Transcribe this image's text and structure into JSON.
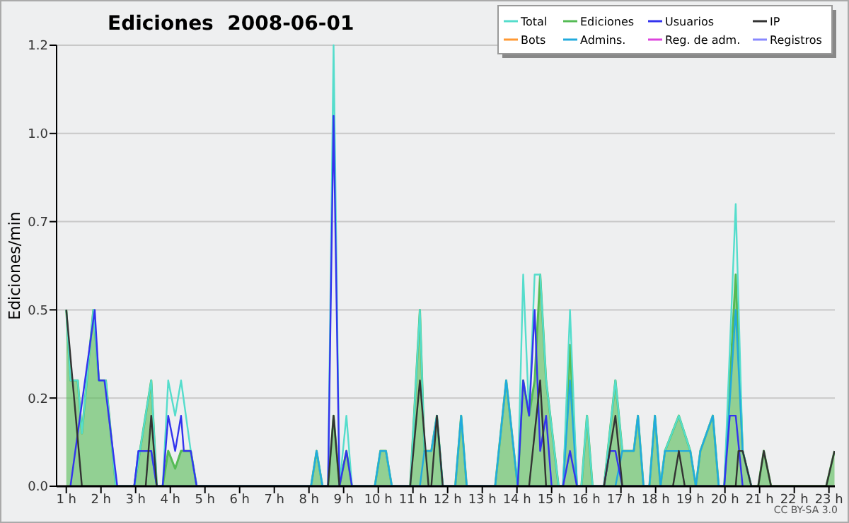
{
  "chart_data": {
    "type": "line",
    "title": "Ediciones  2008-06-01",
    "ylabel": "Ediciones/min",
    "annotations": [
      "CC BY-SA 3.0"
    ],
    "xlim": [
      0.72,
      23.17
    ],
    "ylim": [
      0,
      1.25
    ],
    "xticks": [
      {
        "value": 1,
        "label": "1 h"
      },
      {
        "value": 2,
        "label": "2 h"
      },
      {
        "value": 3,
        "label": "3 h"
      },
      {
        "value": 4,
        "label": "4 h"
      },
      {
        "value": 5,
        "label": "5 h"
      },
      {
        "value": 6,
        "label": "6 h"
      },
      {
        "value": 7,
        "label": "7 h"
      },
      {
        "value": 8,
        "label": "8 h"
      },
      {
        "value": 9,
        "label": "9 h"
      },
      {
        "value": 10,
        "label": "10 h"
      },
      {
        "value": 11,
        "label": "11 h"
      },
      {
        "value": 12,
        "label": "12 h"
      },
      {
        "value": 13,
        "label": "13 h"
      },
      {
        "value": 14,
        "label": "14 h"
      },
      {
        "value": 15,
        "label": "15 h"
      },
      {
        "value": 16,
        "label": "16 h"
      },
      {
        "value": 17,
        "label": "17 h"
      },
      {
        "value": 18,
        "label": "18 h"
      },
      {
        "value": 19,
        "label": "19 h"
      },
      {
        "value": 20,
        "label": "20 h"
      },
      {
        "value": 21,
        "label": "21 h"
      },
      {
        "value": 22,
        "label": "22 h"
      },
      {
        "value": 23,
        "label": "23 h"
      }
    ],
    "yticks": [
      {
        "value": 0,
        "label": "0.0"
      },
      {
        "value": 0.25,
        "label": "0.2"
      },
      {
        "value": 0.5,
        "label": "0.5"
      },
      {
        "value": 0.75,
        "label": "0.7"
      },
      {
        "value": 1,
        "label": "1.0"
      },
      {
        "value": 1.25,
        "label": "1.2"
      }
    ],
    "grid": "y",
    "legend": "top right",
    "series": [
      {
        "name": "Ediciones",
        "type": "area",
        "color": "#55bb55",
        "x": [
          1.0,
          1.12,
          1.33,
          1.45,
          1.78,
          1.94,
          2.14,
          2.43,
          2.96,
          3.45,
          3.61,
          3.78,
          3.94,
          4.14,
          4.31,
          4.59,
          4.76,
          8.06,
          8.22,
          8.39,
          8.55,
          8.71,
          8.88,
          9.08,
          9.24,
          9.9,
          10.06,
          10.22,
          10.39,
          10.92,
          11.2,
          11.33,
          11.53,
          11.69,
          11.86,
          12.22,
          12.39,
          12.55,
          13.37,
          13.69,
          14.02,
          14.18,
          14.35,
          14.51,
          14.67,
          14.84,
          15.2,
          15.33,
          15.53,
          15.73,
          15.86,
          16.02,
          16.18,
          16.51,
          16.84,
          17.04,
          17.37,
          17.49,
          17.65,
          17.82,
          17.98,
          18.14,
          18.27,
          18.67,
          19.0,
          19.16,
          19.29,
          19.65,
          19.82,
          19.98,
          20.31,
          20.51,
          20.76,
          20.96,
          21.12,
          21.33,
          22.92,
          23.16
        ],
        "values": [
          0.5,
          0.3,
          0.3,
          0.15,
          0.5,
          0.3,
          0.3,
          0,
          0,
          0.3,
          0,
          0,
          0.1,
          0.05,
          0.1,
          0.1,
          0,
          0,
          0.1,
          0,
          0,
          0.2,
          0,
          0.1,
          0,
          0,
          0.1,
          0.1,
          0,
          0,
          0.5,
          0.1,
          0.1,
          0.2,
          0,
          0,
          0.2,
          0,
          0,
          0.3,
          0,
          0.3,
          0.2,
          0.3,
          0.6,
          0.3,
          0,
          0,
          0.4,
          0,
          0,
          0.2,
          0,
          0,
          0.3,
          0.1,
          0.1,
          0.2,
          0,
          0,
          0.2,
          0,
          0.1,
          0.2,
          0.1,
          0,
          0.1,
          0.2,
          0,
          0,
          0.6,
          0.1,
          0,
          0,
          0.1,
          0,
          0,
          0.1
        ]
      },
      {
        "name": "Total",
        "color": "#55ddcc",
        "x": [
          1.0,
          1.12,
          1.33,
          1.45,
          1.78,
          1.94,
          2.14,
          2.43,
          2.96,
          3.45,
          3.61,
          3.78,
          3.94,
          4.14,
          4.31,
          4.59,
          4.76,
          8.06,
          8.22,
          8.39,
          8.55,
          8.71,
          8.88,
          9.08,
          9.24,
          9.9,
          10.06,
          10.22,
          10.39,
          10.92,
          11.2,
          11.33,
          11.53,
          11.69,
          11.86,
          12.22,
          12.39,
          12.55,
          13.37,
          13.69,
          14.02,
          14.18,
          14.35,
          14.51,
          14.67,
          14.84,
          15.2,
          15.33,
          15.53,
          15.73,
          15.86,
          16.02,
          16.18,
          16.51,
          16.84,
          17.04,
          17.37,
          17.49,
          17.65,
          17.82,
          17.98,
          18.14,
          18.27,
          18.67,
          19.0,
          19.16,
          19.29,
          19.65,
          19.82,
          19.98,
          20.31,
          20.51,
          20.76
        ],
        "values": [
          0.5,
          0.3,
          0.3,
          0.15,
          0.5,
          0.3,
          0.3,
          0,
          0,
          0.3,
          0,
          0,
          0.3,
          0.2,
          0.3,
          0.1,
          0,
          0,
          0.1,
          0,
          0,
          1.25,
          0,
          0.2,
          0,
          0,
          0.1,
          0.1,
          0,
          0,
          0.5,
          0.1,
          0.1,
          0.2,
          0,
          0,
          0.2,
          0,
          0,
          0.3,
          0,
          0.6,
          0.2,
          0.6,
          0.6,
          0.3,
          0,
          0,
          0.5,
          0,
          0,
          0.2,
          0,
          0,
          0.3,
          0.1,
          0.1,
          0.2,
          0,
          0,
          0.2,
          0,
          0.1,
          0.2,
          0.1,
          0,
          0.1,
          0.2,
          0,
          0,
          0.8,
          0.1,
          0
        ]
      },
      {
        "name": "Admins.",
        "color": "#22aadd",
        "x": [
          2.96,
          3.08,
          3.45,
          3.61,
          8.06,
          8.22,
          8.39,
          9.9,
          10.06,
          10.22,
          10.39,
          11.2,
          11.33,
          11.53,
          11.69,
          11.86,
          12.22,
          12.39,
          12.55,
          13.37,
          13.69,
          14.02,
          15.33,
          15.53,
          15.73,
          16.84,
          17.04,
          17.37,
          17.49,
          17.65,
          17.82,
          17.98,
          18.14,
          18.27,
          18.67,
          19.0,
          19.16,
          19.29,
          19.65,
          19.82,
          19.98,
          20.31,
          20.51,
          20.76
        ],
        "values": [
          0,
          0.1,
          0.1,
          0,
          0,
          0.1,
          0,
          0,
          0.1,
          0.1,
          0,
          0,
          0.1,
          0.1,
          0.2,
          0,
          0,
          0.2,
          0,
          0,
          0.3,
          0,
          0,
          0.3,
          0,
          0,
          0.1,
          0.1,
          0.2,
          0,
          0,
          0.2,
          0,
          0.1,
          0.1,
          0.1,
          0,
          0.1,
          0.2,
          0,
          0,
          0.5,
          0.1,
          0
        ]
      },
      {
        "name": "Usuarios",
        "color": "#3333ee",
        "x": [
          1.12,
          1.82,
          1.94,
          2.1,
          2.47,
          2.96,
          3.08,
          3.45,
          3.61,
          3.78,
          3.94,
          4.14,
          4.31,
          4.39,
          4.59,
          4.76,
          8.55,
          8.71,
          8.88,
          9.08,
          9.24,
          14.02,
          14.18,
          14.35,
          14.51,
          14.67,
          14.84,
          15.0,
          15.33,
          15.53,
          15.73,
          16.51,
          16.68,
          16.84,
          17.04,
          19.98,
          20.14,
          20.31,
          20.51
        ],
        "values": [
          0,
          0.5,
          0.3,
          0.3,
          0,
          0,
          0.1,
          0.1,
          0,
          0,
          0.2,
          0.1,
          0.2,
          0.1,
          0.1,
          0,
          0,
          1.05,
          0,
          0.1,
          0,
          0,
          0.3,
          0.2,
          0.5,
          0.1,
          0.2,
          0,
          0,
          0.1,
          0,
          0,
          0.1,
          0.1,
          0,
          0,
          0.2,
          0.2,
          0
        ]
      },
      {
        "name": "IP",
        "color": "#333333",
        "x": [
          1.0,
          1.45,
          3.29,
          3.45,
          3.61,
          8.55,
          8.71,
          8.88,
          10.92,
          11.2,
          11.45,
          11.53,
          11.69,
          11.86,
          14.35,
          14.67,
          14.84,
          16.51,
          16.84,
          17.04,
          18.5,
          18.67,
          18.84,
          20.31,
          20.39,
          20.51,
          20.76,
          20.96,
          21.12,
          21.33,
          22.92,
          23.16
        ],
        "values": [
          0.5,
          0,
          0,
          0.2,
          0,
          0,
          0.2,
          0,
          0,
          0.3,
          0,
          0,
          0.2,
          0,
          0,
          0.3,
          0,
          0,
          0.2,
          0,
          0,
          0.1,
          0,
          0,
          0.1,
          0.1,
          0,
          0,
          0.1,
          0,
          0,
          0.1
        ]
      },
      {
        "name": "Bots",
        "color": "#ff9933"
      },
      {
        "name": "Reg. de adm.",
        "color": "#dd44dd"
      },
      {
        "name": "Registros",
        "color": "#8888ff"
      }
    ]
  }
}
